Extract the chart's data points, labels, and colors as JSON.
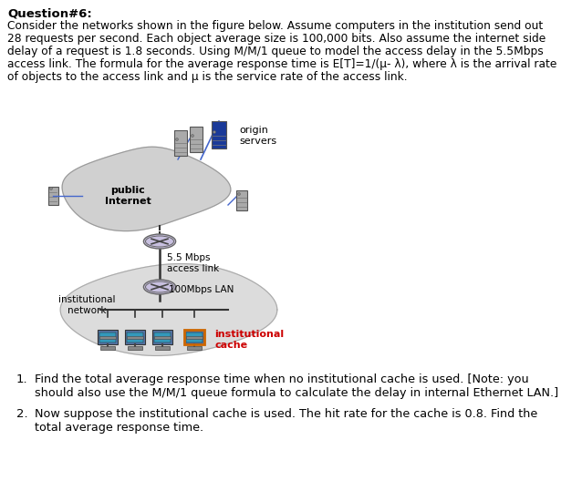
{
  "title": "Question#6:",
  "para_line1": "Consider the networks shown in the figure below. Assume computers in the institution send out",
  "para_line2": "28 requests per second. Each object average size is 100,000 bits. Also assume the internet side",
  "para_line3": "delay of a request is 1.8 seconds. Using M/M/1 queue to model the access delay in the 5.5Mbps",
  "para_line4": "access link. The formula for the average response time is E[T]=1/(μ- λ), where λ is the arrival rate",
  "para_line5": "of objects to the access link and μ is the service rate of the access link.",
  "q1_num": "1.",
  "q1_line1": "Find the total average response time when no institutional cache is used. [Note: you",
  "q1_line2": "should also use the M/M/1 queue formula to calculate the delay in internal Ethernet LAN.]",
  "q2_num": "2.",
  "q2_line1": "Now suppose the institutional cache is used. The hit rate for the cache is 0.8. Find the",
  "q2_line2": "total average response time.",
  "bg_color": "#ffffff",
  "text_color": "#000000",
  "cloud_color": "#d0d0d0",
  "inst_cloud_color": "#dcdcdc",
  "cache_border_color": "#cc6600",
  "cache_label_color": "#cc0000",
  "server_blue_color": "#1a3a99",
  "server_gray_color": "#aaaaaa",
  "router_fill": "#c8c0e0",
  "router_edge": "#666666",
  "line_color": "#333333",
  "blue_line_color": "#4466cc"
}
